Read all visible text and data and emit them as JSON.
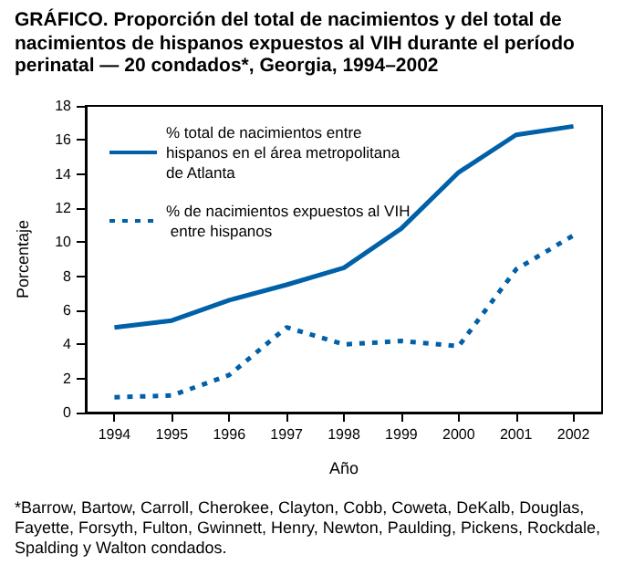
{
  "chart_data": {
    "type": "line",
    "title": "GRÁFICO. Proporción del total de nacimientos y del total de nacimientos de hispanos expuestos al VIH durante el período perinatal — 20 condados*, Georgia, 1994–2002",
    "xlabel": "Año",
    "ylabel": "Porcentaje",
    "categories": [
      "1994",
      "1995",
      "1996",
      "1997",
      "1998",
      "1999",
      "2000",
      "2001",
      "2002"
    ],
    "series": [
      {
        "name": "% total de nacimientos entre hispanos en el área metropolitana de Atlanta",
        "color": "#0060a8",
        "line_style": "solid",
        "values": [
          5.0,
          5.4,
          6.6,
          7.5,
          8.5,
          10.8,
          14.1,
          16.3,
          16.8
        ]
      },
      {
        "name": "% de nacimientos expuestos al VIH entre hispanos",
        "color": "#0060a8",
        "line_style": "dotted",
        "values": [
          0.9,
          1.0,
          2.2,
          5.0,
          4.0,
          4.2,
          3.9,
          8.4,
          10.4
        ]
      }
    ],
    "ylim": [
      0,
      18
    ],
    "yticks": [
      0,
      2,
      4,
      6,
      8,
      10,
      12,
      14,
      16,
      18
    ],
    "grid": false,
    "legend": "top left",
    "marker": "none",
    "annotations": [
      "*Barrow, Bartow, Carroll, Cherokee, Clayton, Cobb, Coweta, DeKalb, Douglas, Fayette, Forsyth, Fulton, Gwinnett, Henry, Newton, Paulding, Pickens, Rockdale, Spalding y Walton condados."
    ]
  }
}
